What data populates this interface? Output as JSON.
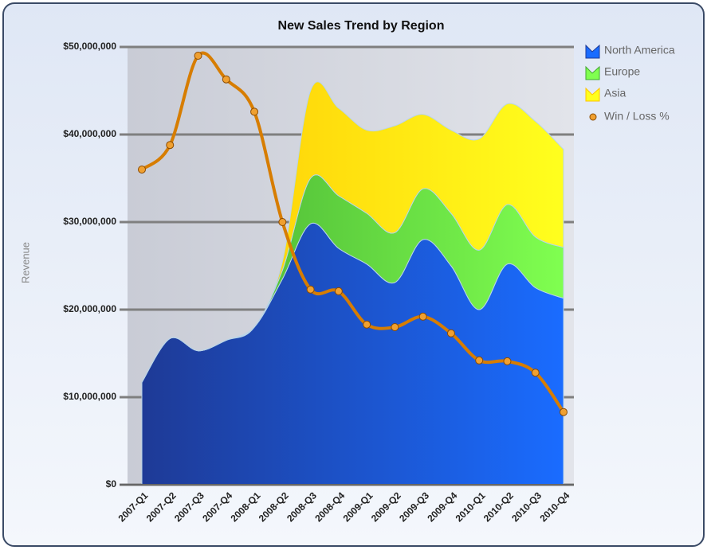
{
  "chart_data": {
    "type": "area",
    "title": "New Sales Trend by Region",
    "y_label": "Revenue",
    "categories": [
      "2007-Q1",
      "2007-Q2",
      "2007-Q3",
      "2007-Q4",
      "2008-Q1",
      "2008-Q2",
      "2008-Q3",
      "2008-Q4",
      "2009-Q1",
      "2009-Q2",
      "2009-Q3",
      "2009-Q4",
      "2010-Q1",
      "2010-Q2",
      "2010-Q3",
      "2010-Q4"
    ],
    "stacked": true,
    "smooth": true,
    "grid": true,
    "legend": "right",
    "ylim": [
      0,
      50000000
    ],
    "yticks": [
      {
        "value": 0,
        "label": "$0"
      },
      {
        "value": 10000000,
        "label": "$10,000,000"
      },
      {
        "value": 20000000,
        "label": "$20,000,000"
      },
      {
        "value": 30000000,
        "label": "$30,000,000"
      },
      {
        "value": 40000000,
        "label": "$40,000,000"
      },
      {
        "value": 50000000,
        "label": "$50,000,000"
      }
    ],
    "series": [
      {
        "name": "North America",
        "type": "area",
        "color": [
          "#1e3a96",
          "#1a6cff"
        ],
        "values": [
          11700000,
          16700000,
          15300000,
          16500000,
          18000000,
          23500000,
          29800000,
          27000000,
          25200000,
          23100000,
          28000000,
          25000000,
          20000000,
          25200000,
          22500000,
          21300000
        ]
      },
      {
        "name": "Europe",
        "type": "area",
        "color": [
          "#42a830",
          "#80ff50"
        ],
        "values": [
          0,
          0,
          0,
          0,
          0,
          1000000,
          5200000,
          6000000,
          5800000,
          5700000,
          5800000,
          6000000,
          6800000,
          6800000,
          5800000,
          5800000
        ]
      },
      {
        "name": "Asia",
        "type": "area",
        "color": [
          "#ffc400",
          "#ffff1e"
        ],
        "values": [
          0,
          0,
          0,
          0,
          0,
          1000000,
          10000000,
          10000000,
          9500000,
          12200000,
          8500000,
          9500000,
          12700000,
          11500000,
          13200000,
          11200000
        ]
      },
      {
        "name": "Win / Loss %",
        "type": "line",
        "color": "#d77d00",
        "values": [
          36000000,
          38800000,
          49000000,
          46300000,
          42600000,
          30000000,
          22300000,
          22100000,
          18300000,
          18000000,
          19200000,
          17300000,
          14200000,
          14100000,
          12800000,
          8300000
        ]
      }
    ]
  }
}
